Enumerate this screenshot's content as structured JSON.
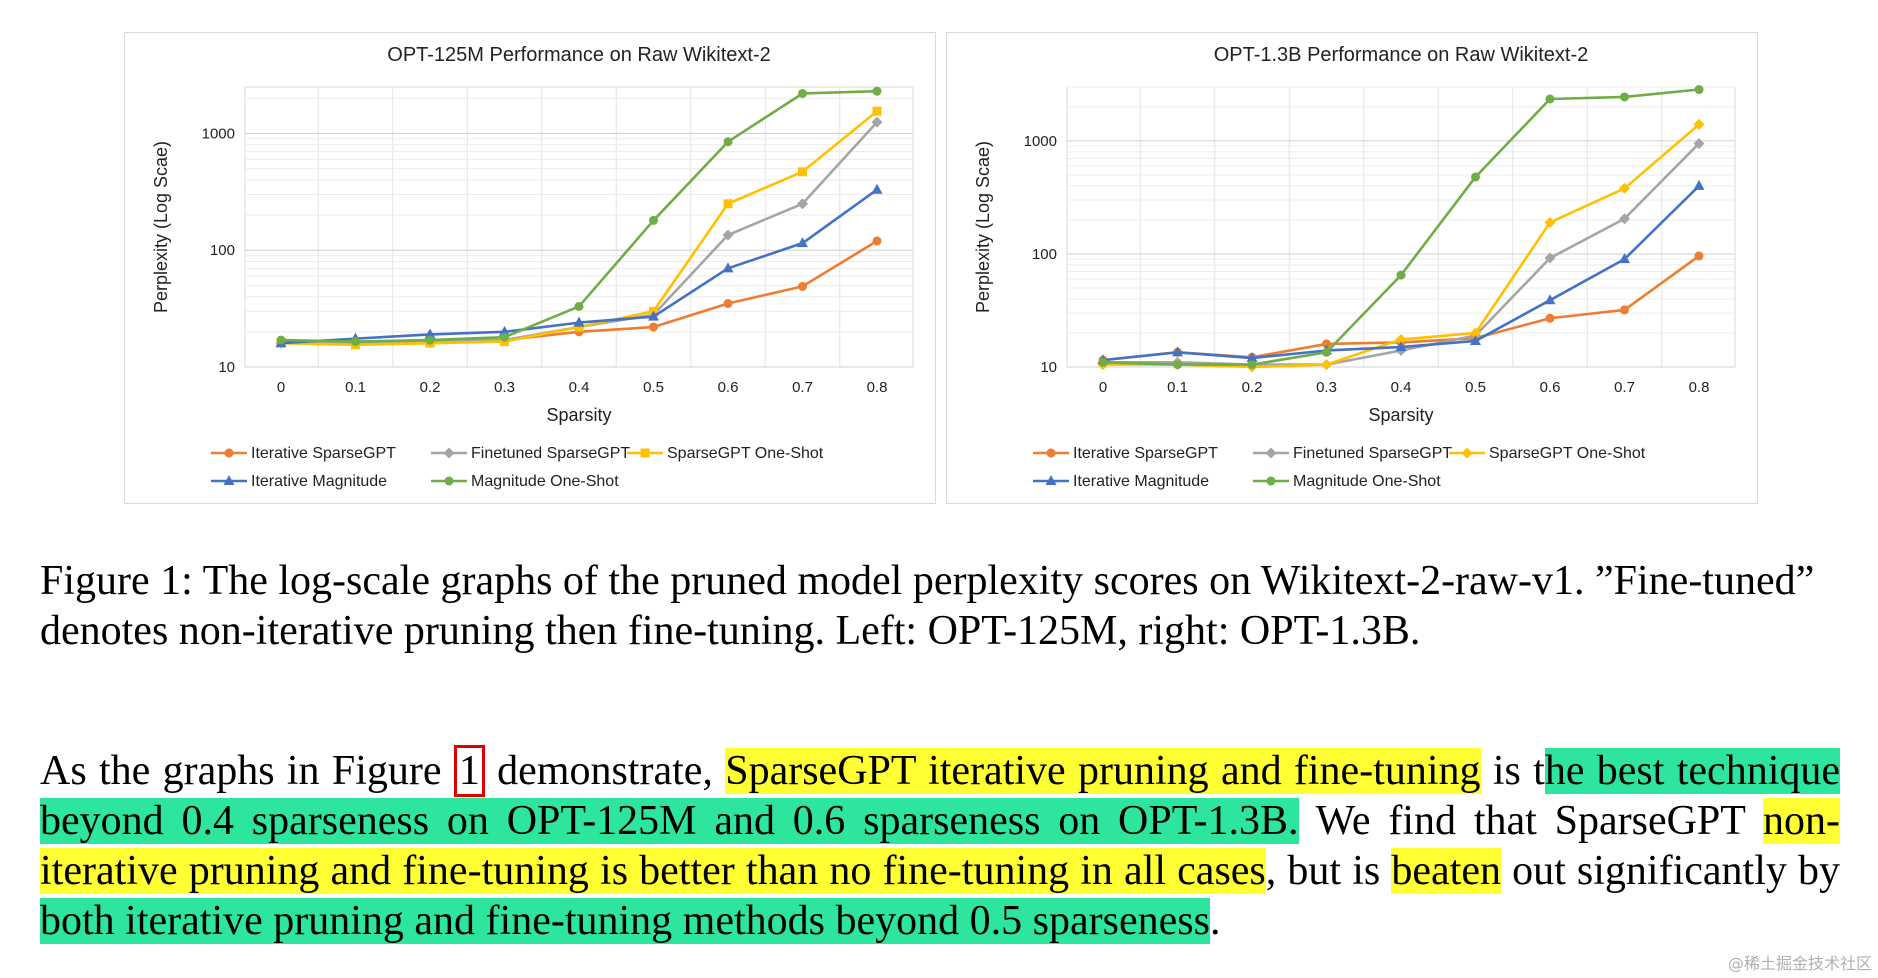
{
  "colors": {
    "Iterative SparseGPT": "#ed7d31",
    "Finetuned SparseGPT": "#a5a5a5",
    "SparseGPT One-Shot": "#ffc000",
    "Iterative Magnitude": "#4472c4",
    "Magnitude One-Shot": "#70ad47"
  },
  "chart_data": [
    {
      "type": "line",
      "title": "OPT-125M Performance on Raw Wikitext-2",
      "xlabel": "Sparsity",
      "ylabel": "Perplexity (Log Scae)",
      "yscale": "log",
      "ylim": [
        10,
        2500
      ],
      "yticks": [
        10,
        100,
        1000
      ],
      "ytick_labels": [
        "10",
        "100",
        "1000"
      ],
      "x": [
        0,
        0.1,
        0.2,
        0.3,
        0.4,
        0.5,
        0.6,
        0.7,
        0.8
      ],
      "xtick_labels": [
        "0",
        "0.1",
        "0.2",
        "0.3",
        "0.4",
        "0.5",
        "0.6",
        "0.7",
        "0.8"
      ],
      "legend_position": "bottom",
      "series": [
        {
          "name": "Iterative SparseGPT",
          "marker": "circle",
          "values": [
            16,
            16,
            16.5,
            17,
            20,
            22,
            35,
            49,
            120
          ]
        },
        {
          "name": "Finetuned SparseGPT",
          "marker": "diamond",
          "values": [
            16,
            16,
            16.5,
            17,
            22,
            28,
            135,
            250,
            1250
          ]
        },
        {
          "name": "SparseGPT One-Shot",
          "marker": "square",
          "values": [
            16,
            15.5,
            16,
            16.5,
            22,
            30,
            250,
            470,
            1550
          ]
        },
        {
          "name": "Iterative Magnitude",
          "marker": "triangle",
          "values": [
            16,
            17.5,
            19,
            20,
            24,
            27,
            70,
            115,
            330
          ]
        },
        {
          "name": "Magnitude One-Shot",
          "marker": "circle",
          "values": [
            17,
            16.5,
            17,
            18,
            33,
            180,
            850,
            2200,
            2300
          ]
        }
      ]
    },
    {
      "type": "line",
      "title": "OPT-1.3B Performance on Raw Wikitext-2",
      "xlabel": "Sparsity",
      "ylabel": "Perplexity (Log Scae)",
      "yscale": "log",
      "ylim": [
        10,
        3000
      ],
      "yticks": [
        10,
        100,
        1000
      ],
      "ytick_labels": [
        "10",
        "100",
        "1000"
      ],
      "x": [
        0,
        0.1,
        0.2,
        0.3,
        0.4,
        0.5,
        0.6,
        0.7,
        0.8
      ],
      "xtick_labels": [
        "0",
        "0.1",
        "0.2",
        "0.3",
        "0.4",
        "0.5",
        "0.6",
        "0.7",
        "0.8"
      ],
      "legend_position": "bottom",
      "series": [
        {
          "name": "Iterative SparseGPT",
          "marker": "circle",
          "values": [
            11.5,
            13.5,
            12.2,
            16,
            16.5,
            18,
            27,
            32,
            96
          ]
        },
        {
          "name": "Finetuned SparseGPT",
          "marker": "diamond",
          "values": [
            11,
            11,
            10.5,
            10.5,
            14,
            19,
            92,
            205,
            950
          ]
        },
        {
          "name": "SparseGPT One-Shot",
          "marker": "diamond",
          "values": [
            10.5,
            10.5,
            10,
            10.5,
            17.5,
            20,
            190,
            380,
            1400
          ]
        },
        {
          "name": "Iterative Magnitude",
          "marker": "triangle",
          "values": [
            11.5,
            13.5,
            12,
            14,
            15,
            17,
            39,
            90,
            400
          ]
        },
        {
          "name": "Magnitude One-Shot",
          "marker": "circle",
          "values": [
            11,
            10.5,
            10.5,
            13.5,
            65,
            480,
            2350,
            2450,
            2850
          ]
        }
      ]
    }
  ],
  "caption": "Figure 1: The log-scale graphs of the pruned model perplexity scores on Wikitext-2-raw-v1. ”Fine-tuned” denotes non-iterative pruning then fine-tuning. Left: OPT-125M, right: OPT-1.3B.",
  "paragraph": {
    "p1": "As the graphs in Figure ",
    "figref": "1",
    "p2": " demonstrate, ",
    "hl1": "SparseGPT iterative pruning and fine-tuning",
    "p3": " is t",
    "hl2": "he best technique beyond 0.4 sparseness on OPT-125M and 0.6 sparseness on OPT-1.3B.",
    "p4": " We find that SparseGPT ",
    "hl3": "non-iterative pruning and fine-tuning is better than no fine-tuning in all cases",
    "p5": ", but is ",
    "hl4": "beaten",
    "p6": " out significantly by ",
    "hl5": "both iterative pruning and fine-tuning methods beyond 0.5 sparseness",
    "p7": "."
  },
  "watermark": "@稀土掘金技术社区"
}
